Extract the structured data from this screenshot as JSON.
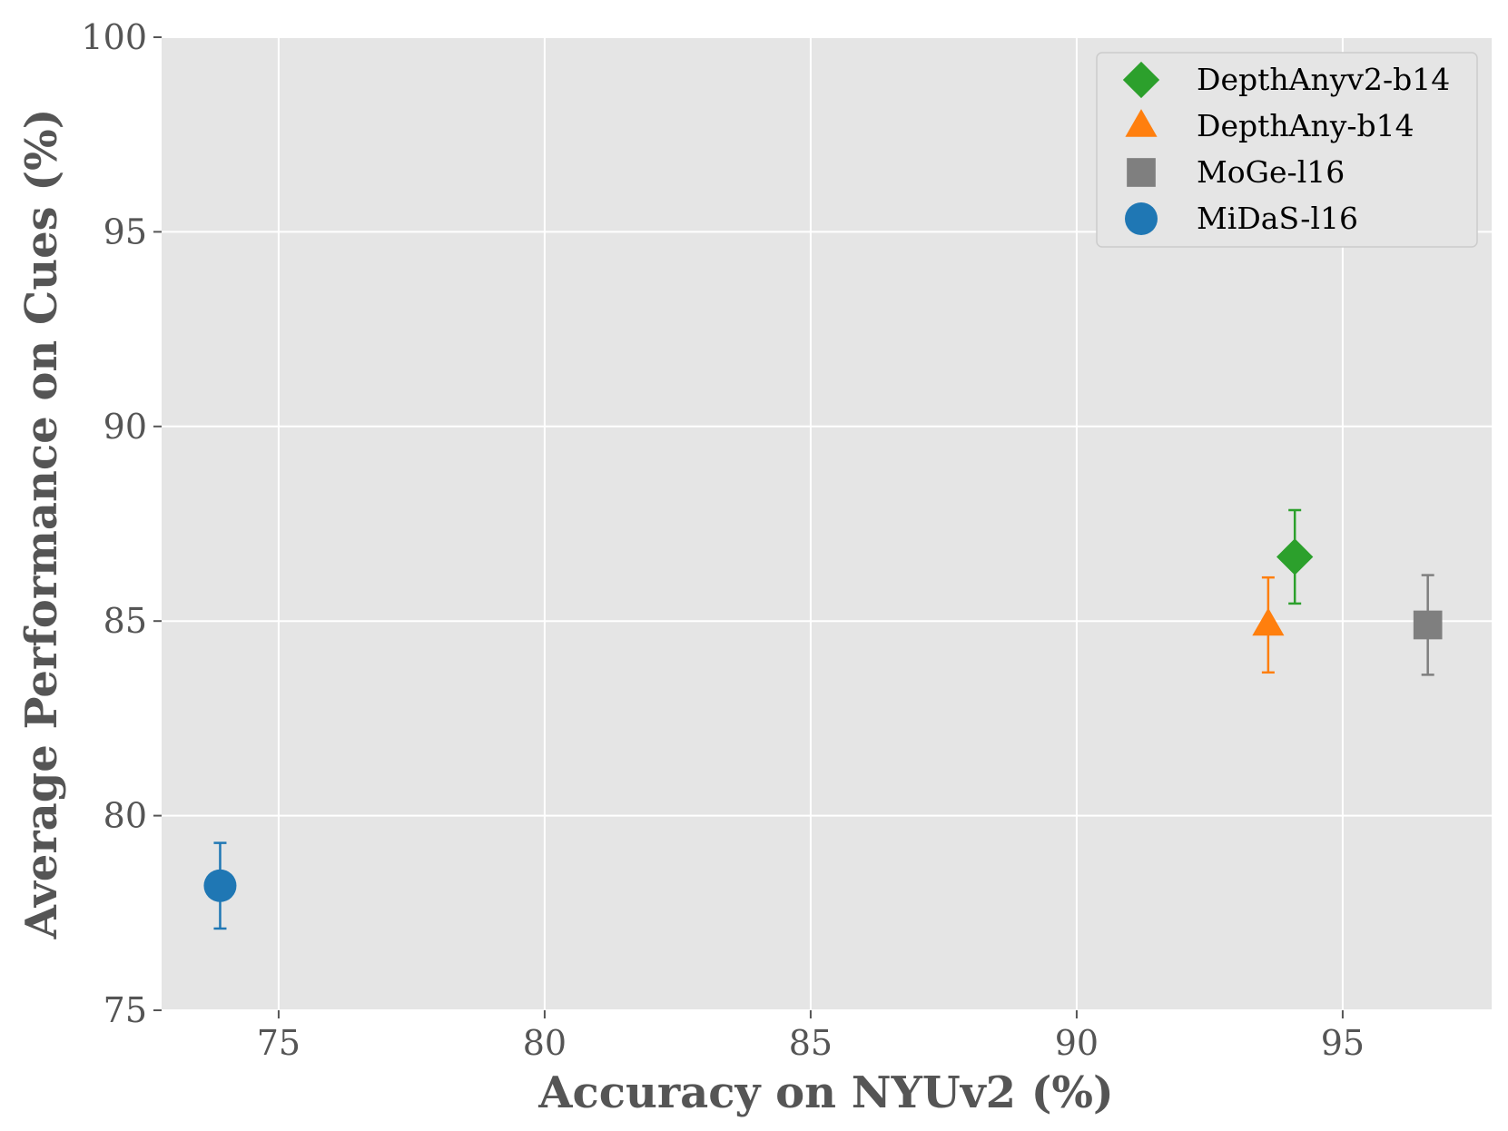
{
  "chart_data": {
    "type": "scatter",
    "title": "",
    "xlabel": "Accuracy on NYUv2 (%)",
    "ylabel": "Average Performance on Cues (%)",
    "xlim": [
      72.8,
      97.8
    ],
    "ylim": [
      75,
      100
    ],
    "x_ticks": [
      75,
      80,
      85,
      90,
      95
    ],
    "y_ticks": [
      75,
      80,
      85,
      90,
      95,
      100
    ],
    "grid": true,
    "legend_position": "upper right",
    "background_color": "#e5e5e5",
    "series": [
      {
        "name": "DepthAnyv2-b14",
        "marker": "diamond",
        "color": "#2ca02c",
        "x": 94.1,
        "y": 86.65,
        "err": 1.2
      },
      {
        "name": "DepthAny-b14",
        "marker": "triangle",
        "color": "#ff7f0e",
        "x": 93.6,
        "y": 84.9,
        "err": 1.22
      },
      {
        "name": "MoGe-l16",
        "marker": "square",
        "color": "#7f7f7f",
        "x": 96.6,
        "y": 84.9,
        "err": 1.28
      },
      {
        "name": "MiDaS-l16",
        "marker": "circle",
        "color": "#1f77b4",
        "x": 73.9,
        "y": 78.2,
        "err": 1.1
      }
    ]
  }
}
